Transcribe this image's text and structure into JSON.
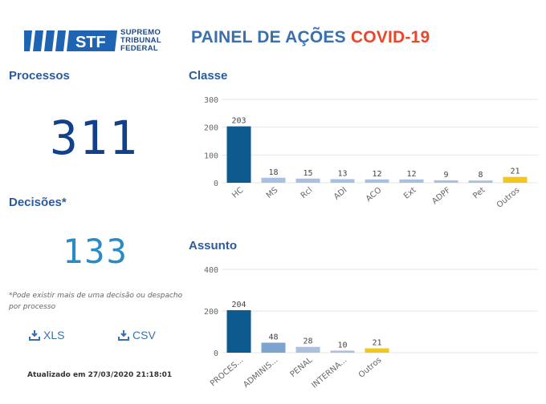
{
  "header": {
    "logo_abbr": "STF",
    "logo_lines": [
      "SUPREMO",
      "TRIBUNAL",
      "FEDERAL"
    ],
    "title_main": "PAINEL DE AÇÕES",
    "title_accent": "COVID-19",
    "colors": {
      "brand": "#1a4a8a",
      "title": "#3a6fb0",
      "accent": "#e8472a"
    }
  },
  "processos": {
    "label": "Processos",
    "value": "311"
  },
  "decisoes": {
    "label": "Decisões*",
    "value": "133",
    "note": "*Pode existir mais de uma decisão ou despacho por processo"
  },
  "downloads": {
    "xls_label": "XLS",
    "csv_label": "CSV",
    "icon": "download-icon"
  },
  "updated": "Atualizado em 27/03/2020 21:18:01",
  "chart_data": [
    {
      "type": "bar",
      "title": "Classe",
      "categories": [
        "HC",
        "MS",
        "Rcl",
        "ADI",
        "ACO",
        "Ext",
        "ADPF",
        "Pet",
        "Outros"
      ],
      "values": [
        203,
        18,
        15,
        13,
        12,
        12,
        9,
        8,
        21
      ],
      "colors": [
        "#0d5a8e",
        "#a9c0df",
        "#a9c0df",
        "#a9c0df",
        "#a9c0df",
        "#a9c0df",
        "#a9c0df",
        "#a9c0df",
        "#f5c518"
      ],
      "yticks": [
        0,
        100,
        200,
        300
      ],
      "ylim": [
        0,
        300
      ],
      "grid": true
    },
    {
      "type": "bar",
      "title": "Assunto",
      "categories": [
        "PROCES...",
        "ADMINIS...",
        "PENAL",
        "INTERNA...",
        "Outros"
      ],
      "values": [
        204,
        48,
        28,
        10,
        21
      ],
      "colors": [
        "#0d5a8e",
        "#7fa3cf",
        "#a9c0df",
        "#a9c0df",
        "#f5c518"
      ],
      "yticks": [
        0,
        200,
        400
      ],
      "ylim": [
        0,
        400
      ],
      "grid": true
    }
  ]
}
